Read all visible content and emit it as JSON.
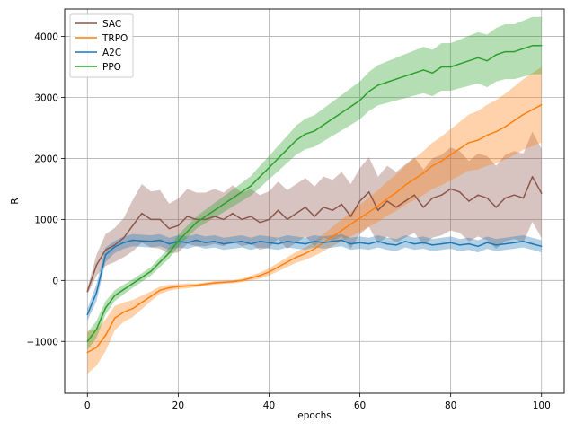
{
  "chart_data": {
    "type": "line",
    "title": "",
    "xlabel": "epochs",
    "ylabel": "R",
    "xlim": [
      -5,
      105
    ],
    "ylim": [
      -1850,
      4450
    ],
    "xticks": [
      0,
      20,
      40,
      60,
      80,
      100
    ],
    "yticks": [
      -1000,
      0,
      1000,
      2000,
      3000,
      4000
    ],
    "grid": true,
    "legend_position": "top-left",
    "series": [
      {
        "name": "SAC",
        "color": "#8c564b",
        "x": [
          0,
          2,
          4,
          6,
          8,
          10,
          12,
          14,
          16,
          18,
          20,
          22,
          24,
          26,
          28,
          30,
          32,
          34,
          36,
          38,
          40,
          42,
          44,
          46,
          48,
          50,
          52,
          54,
          56,
          58,
          60,
          62,
          64,
          66,
          68,
          70,
          72,
          74,
          76,
          78,
          80,
          82,
          84,
          86,
          88,
          90,
          92,
          94,
          96,
          98,
          100
        ],
        "y": [
          -180,
          250,
          500,
          580,
          700,
          900,
          1100,
          1000,
          1000,
          850,
          900,
          1050,
          1000,
          1000,
          1050,
          1000,
          1100,
          1000,
          1050,
          950,
          1000,
          1150,
          1000,
          1100,
          1200,
          1050,
          1200,
          1150,
          1250,
          1050,
          1300,
          1450,
          1150,
          1300,
          1200,
          1300,
          1400,
          1200,
          1350,
          1400,
          1500,
          1450,
          1300,
          1400,
          1350,
          1200,
          1350,
          1400,
          1350,
          1700,
          1430
        ],
        "band": [
          [
            -230,
            -130
          ],
          [
            80,
            420
          ],
          [
            240,
            760
          ],
          [
            300,
            860
          ],
          [
            380,
            1020
          ],
          [
            480,
            1320
          ],
          [
            620,
            1580
          ],
          [
            540,
            1460
          ],
          [
            520,
            1480
          ],
          [
            440,
            1260
          ],
          [
            460,
            1340
          ],
          [
            600,
            1500
          ],
          [
            560,
            1440
          ],
          [
            560,
            1440
          ],
          [
            600,
            1500
          ],
          [
            560,
            1440
          ],
          [
            640,
            1560
          ],
          [
            560,
            1440
          ],
          [
            600,
            1500
          ],
          [
            500,
            1400
          ],
          [
            540,
            1460
          ],
          [
            680,
            1620
          ],
          [
            520,
            1480
          ],
          [
            620,
            1580
          ],
          [
            720,
            1680
          ],
          [
            560,
            1540
          ],
          [
            700,
            1700
          ],
          [
            650,
            1650
          ],
          [
            720,
            1780
          ],
          [
            520,
            1580
          ],
          [
            760,
            1840
          ],
          [
            880,
            2020
          ],
          [
            600,
            1700
          ],
          [
            720,
            1880
          ],
          [
            620,
            1780
          ],
          [
            700,
            1900
          ],
          [
            780,
            2020
          ],
          [
            580,
            1820
          ],
          [
            700,
            2000
          ],
          [
            740,
            2060
          ],
          [
            820,
            2180
          ],
          [
            780,
            2120
          ],
          [
            640,
            1960
          ],
          [
            720,
            2080
          ],
          [
            660,
            2040
          ],
          [
            520,
            1880
          ],
          [
            640,
            2060
          ],
          [
            680,
            2120
          ],
          [
            620,
            2080
          ],
          [
            960,
            2440
          ],
          [
            700,
            2160
          ]
        ]
      },
      {
        "name": "TRPO",
        "color": "#ff7f0e",
        "x": [
          0,
          2,
          4,
          6,
          8,
          10,
          12,
          14,
          16,
          18,
          20,
          22,
          24,
          26,
          28,
          30,
          32,
          34,
          36,
          38,
          40,
          42,
          44,
          46,
          48,
          50,
          52,
          54,
          56,
          58,
          60,
          62,
          64,
          66,
          68,
          70,
          72,
          74,
          76,
          78,
          80,
          82,
          84,
          86,
          88,
          90,
          92,
          94,
          96,
          98,
          100
        ],
        "y": [
          -1180,
          -1100,
          -900,
          -620,
          -520,
          -460,
          -360,
          -260,
          -160,
          -120,
          -100,
          -90,
          -80,
          -60,
          -40,
          -30,
          -20,
          0,
          40,
          80,
          140,
          220,
          300,
          380,
          440,
          520,
          620,
          720,
          820,
          920,
          1020,
          1120,
          1220,
          1340,
          1440,
          1560,
          1660,
          1760,
          1880,
          1960,
          2060,
          2160,
          2260,
          2300,
          2380,
          2440,
          2520,
          2620,
          2720,
          2800,
          2880
        ],
        "band": [
          [
            -1530,
            -830
          ],
          [
            -1400,
            -800
          ],
          [
            -1160,
            -640
          ],
          [
            -820,
            -420
          ],
          [
            -680,
            -360
          ],
          [
            -600,
            -320
          ],
          [
            -470,
            -250
          ],
          [
            -340,
            -180
          ],
          [
            -220,
            -100
          ],
          [
            -170,
            -70
          ],
          [
            -140,
            -60
          ],
          [
            -130,
            -50
          ],
          [
            -110,
            -50
          ],
          [
            -90,
            -30
          ],
          [
            -70,
            -10
          ],
          [
            -55,
            -5
          ],
          [
            -45,
            5
          ],
          [
            -30,
            30
          ],
          [
            0,
            80
          ],
          [
            30,
            130
          ],
          [
            80,
            200
          ],
          [
            150,
            290
          ],
          [
            220,
            380
          ],
          [
            290,
            470
          ],
          [
            340,
            540
          ],
          [
            400,
            640
          ],
          [
            480,
            760
          ],
          [
            560,
            880
          ],
          [
            640,
            1000
          ],
          [
            720,
            1120
          ],
          [
            800,
            1240
          ],
          [
            880,
            1360
          ],
          [
            960,
            1480
          ],
          [
            1060,
            1620
          ],
          [
            1140,
            1740
          ],
          [
            1240,
            1880
          ],
          [
            1320,
            2000
          ],
          [
            1400,
            2120
          ],
          [
            1500,
            2260
          ],
          [
            1560,
            2360
          ],
          [
            1640,
            2480
          ],
          [
            1720,
            2600
          ],
          [
            1800,
            2720
          ],
          [
            1820,
            2780
          ],
          [
            1880,
            2880
          ],
          [
            1920,
            2960
          ],
          [
            1980,
            3060
          ],
          [
            2060,
            3180
          ],
          [
            2140,
            3300
          ],
          [
            2200,
            3400
          ],
          [
            2260,
            3500
          ]
        ]
      },
      {
        "name": "A2C",
        "color": "#1f77b4",
        "x": [
          0,
          2,
          4,
          6,
          8,
          10,
          12,
          14,
          16,
          18,
          20,
          22,
          24,
          26,
          28,
          30,
          32,
          34,
          36,
          38,
          40,
          42,
          44,
          46,
          48,
          50,
          52,
          54,
          56,
          58,
          60,
          62,
          64,
          66,
          68,
          70,
          72,
          74,
          76,
          78,
          80,
          82,
          84,
          86,
          88,
          90,
          92,
          94,
          96,
          98,
          100
        ],
        "y": [
          -560,
          -200,
          420,
          550,
          620,
          660,
          650,
          640,
          660,
          600,
          640,
          620,
          660,
          620,
          640,
          600,
          620,
          640,
          600,
          640,
          620,
          600,
          640,
          620,
          600,
          640,
          620,
          640,
          660,
          600,
          620,
          600,
          640,
          600,
          580,
          640,
          600,
          620,
          580,
          600,
          620,
          580,
          600,
          560,
          620,
          580,
          600,
          620,
          640,
          600,
          560
        ],
        "band": [
          [
            -660,
            -460
          ],
          [
            -340,
            -60
          ],
          [
            300,
            540
          ],
          [
            450,
            650
          ],
          [
            520,
            720
          ],
          [
            560,
            760
          ],
          [
            550,
            750
          ],
          [
            540,
            740
          ],
          [
            560,
            760
          ],
          [
            500,
            700
          ],
          [
            540,
            740
          ],
          [
            520,
            720
          ],
          [
            560,
            760
          ],
          [
            520,
            720
          ],
          [
            540,
            740
          ],
          [
            500,
            700
          ],
          [
            520,
            720
          ],
          [
            540,
            740
          ],
          [
            500,
            700
          ],
          [
            540,
            740
          ],
          [
            520,
            720
          ],
          [
            500,
            700
          ],
          [
            540,
            740
          ],
          [
            520,
            720
          ],
          [
            500,
            700
          ],
          [
            540,
            740
          ],
          [
            520,
            720
          ],
          [
            540,
            740
          ],
          [
            560,
            760
          ],
          [
            500,
            700
          ],
          [
            520,
            720
          ],
          [
            500,
            700
          ],
          [
            540,
            740
          ],
          [
            500,
            700
          ],
          [
            480,
            680
          ],
          [
            540,
            740
          ],
          [
            500,
            700
          ],
          [
            520,
            720
          ],
          [
            480,
            680
          ],
          [
            500,
            700
          ],
          [
            520,
            720
          ],
          [
            480,
            680
          ],
          [
            500,
            700
          ],
          [
            460,
            660
          ],
          [
            520,
            720
          ],
          [
            480,
            680
          ],
          [
            500,
            700
          ],
          [
            520,
            720
          ],
          [
            540,
            740
          ],
          [
            500,
            700
          ],
          [
            460,
            660
          ]
        ]
      },
      {
        "name": "PPO",
        "color": "#2ca02c",
        "x": [
          0,
          2,
          4,
          6,
          8,
          10,
          12,
          14,
          16,
          18,
          20,
          22,
          24,
          26,
          28,
          30,
          32,
          34,
          36,
          38,
          40,
          42,
          44,
          46,
          48,
          50,
          52,
          54,
          56,
          58,
          60,
          62,
          64,
          66,
          68,
          70,
          72,
          74,
          76,
          78,
          80,
          82,
          84,
          86,
          88,
          90,
          92,
          94,
          96,
          98,
          100
        ],
        "y": [
          -1000,
          -800,
          -450,
          -250,
          -150,
          -50,
          50,
          150,
          300,
          450,
          650,
          800,
          950,
          1050,
          1150,
          1250,
          1350,
          1450,
          1550,
          1700,
          1850,
          2000,
          2150,
          2300,
          2400,
          2450,
          2550,
          2650,
          2750,
          2850,
          2950,
          3100,
          3200,
          3250,
          3300,
          3350,
          3400,
          3450,
          3400,
          3500,
          3500,
          3550,
          3600,
          3650,
          3600,
          3700,
          3750,
          3750,
          3800,
          3850,
          3850
        ],
        "band": [
          [
            -1140,
            -860
          ],
          [
            -940,
            -660
          ],
          [
            -560,
            -340
          ],
          [
            -340,
            -160
          ],
          [
            -230,
            -70
          ],
          [
            -120,
            20
          ],
          [
            -20,
            120
          ],
          [
            80,
            220
          ],
          [
            220,
            380
          ],
          [
            360,
            540
          ],
          [
            550,
            750
          ],
          [
            700,
            900
          ],
          [
            850,
            1050
          ],
          [
            940,
            1160
          ],
          [
            1030,
            1270
          ],
          [
            1120,
            1380
          ],
          [
            1210,
            1490
          ],
          [
            1300,
            1600
          ],
          [
            1390,
            1710
          ],
          [
            1520,
            1880
          ],
          [
            1660,
            2040
          ],
          [
            1790,
            2210
          ],
          [
            1930,
            2370
          ],
          [
            2060,
            2540
          ],
          [
            2150,
            2650
          ],
          [
            2190,
            2710
          ],
          [
            2280,
            2820
          ],
          [
            2370,
            2930
          ],
          [
            2460,
            3040
          ],
          [
            2550,
            3150
          ],
          [
            2640,
            3260
          ],
          [
            2780,
            3420
          ],
          [
            2870,
            3530
          ],
          [
            2910,
            3590
          ],
          [
            2950,
            3650
          ],
          [
            2990,
            3710
          ],
          [
            3030,
            3770
          ],
          [
            3070,
            3830
          ],
          [
            3020,
            3780
          ],
          [
            3110,
            3890
          ],
          [
            3110,
            3890
          ],
          [
            3150,
            3950
          ],
          [
            3190,
            4010
          ],
          [
            3230,
            4070
          ],
          [
            3170,
            4030
          ],
          [
            3260,
            4140
          ],
          [
            3300,
            4200
          ],
          [
            3300,
            4200
          ],
          [
            3340,
            4260
          ],
          [
            3380,
            4320
          ],
          [
            3380,
            4320
          ]
        ]
      }
    ]
  }
}
